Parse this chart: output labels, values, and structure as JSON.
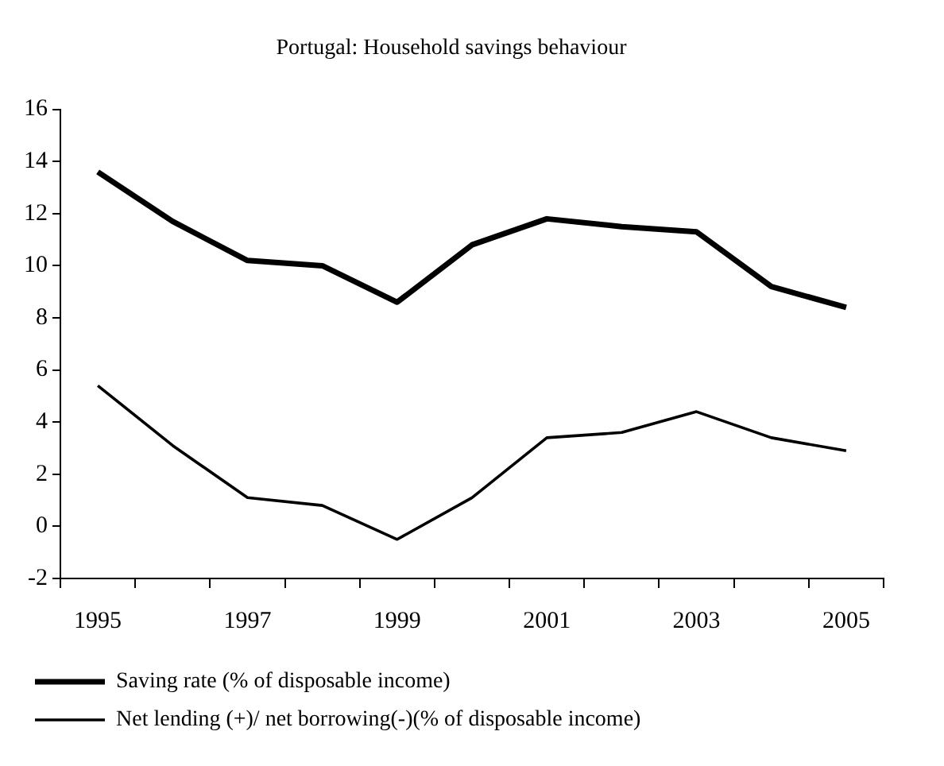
{
  "chart_data": {
    "type": "line",
    "title": "Portugal: Household savings behaviour",
    "categories": [
      "1995",
      null,
      "1997",
      null,
      "1999",
      null,
      "2001",
      null,
      "2003",
      null,
      "2005"
    ],
    "series": [
      {
        "name": "Saving rate (% of disposable income)",
        "color": "#000000",
        "values": [
          13.6,
          11.7,
          10.2,
          10.0,
          8.6,
          10.8,
          11.8,
          11.5,
          11.3,
          9.2,
          8.4
        ]
      },
      {
        "name": "Net lending (+)/ net borrowing(-)(% of disposable income)",
        "color": "#000000",
        "values": [
          5.4,
          3.1,
          1.1,
          0.8,
          -0.5,
          1.1,
          3.4,
          3.6,
          4.4,
          3.4,
          2.9
        ]
      }
    ],
    "ylim": [
      -2,
      16
    ],
    "yticks": [
      -2,
      0,
      2,
      4,
      6,
      8,
      10,
      12,
      14,
      16
    ],
    "grid": false,
    "legend": "bottom left",
    "marker": "none",
    "line_style": "solid"
  }
}
